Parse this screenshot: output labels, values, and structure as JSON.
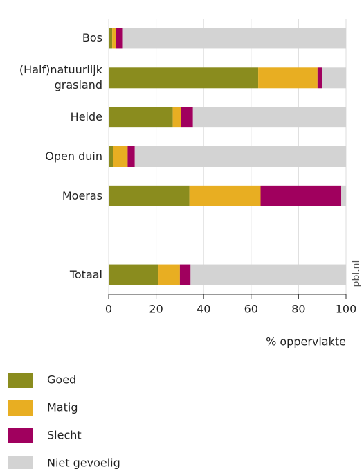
{
  "chart_data": {
    "type": "bar",
    "orientation": "horizontal",
    "stacked": true,
    "categories": [
      "Bos",
      "(Half)natuurlijk grasland",
      "Heide",
      "Open duin",
      "Moeras",
      null,
      "Totaal"
    ],
    "series": [
      {
        "name": "Goed",
        "color": "#8a8c1e",
        "values": [
          1.5,
          63,
          27,
          2,
          34,
          null,
          21
        ]
      },
      {
        "name": "Matig",
        "color": "#e8ae22",
        "values": [
          1.5,
          25,
          3.5,
          6,
          30,
          null,
          9
        ]
      },
      {
        "name": "Slecht",
        "color": "#a0005e",
        "values": [
          3,
          2,
          5,
          3,
          34,
          null,
          4.5
        ]
      },
      {
        "name": "Niet gevoelig",
        "color": "#d3d3d3",
        "values": [
          94,
          10,
          64.5,
          89,
          2,
          null,
          65.5
        ]
      }
    ],
    "xlim": [
      0,
      100
    ],
    "xticks": [
      0,
      20,
      40,
      60,
      80,
      100
    ],
    "grid": true,
    "xlabel": "% oppervlakte",
    "source": "pbl.nl",
    "legend": "bottom-left"
  }
}
